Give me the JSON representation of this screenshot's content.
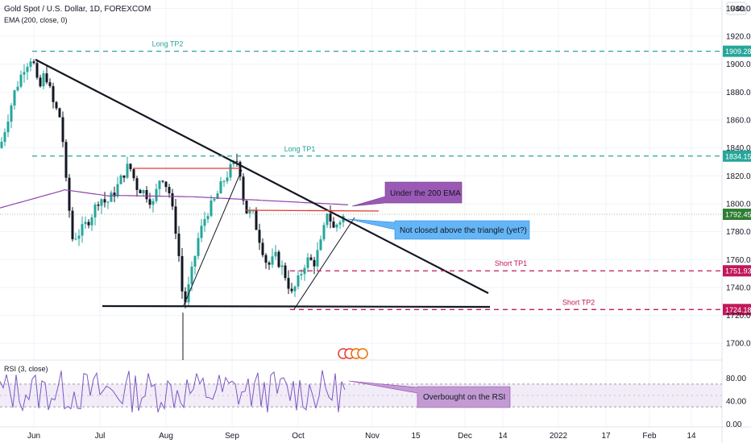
{
  "header": {
    "symbol": "Gold Spot / U.S. Dollar, 1D, FOREXCOM",
    "indicator": "EMA (200, close, 0)",
    "currency": "USD"
  },
  "rsi_header": "RSI (3, close)",
  "colors": {
    "up": "#26a69a",
    "down": "#131722",
    "ema": "#8e44ad",
    "tp_long": "#26a69a",
    "tp_short": "#c2185b",
    "trend": "#131722",
    "resistance": "#e53935",
    "callout_purple_fill": "#9b59b6",
    "callout_blue_fill": "#64b5f6",
    "rsi_line": "#7e57c2",
    "rsi_band": "#ede7f6",
    "current_price": "#2e7d32"
  },
  "chart_data": [
    {
      "type": "candlestick",
      "x_axis": {
        "tick_labels": [
          "Jun",
          "Jul",
          "Aug",
          "Sep",
          "Oct",
          "Nov",
          "15",
          "Dec",
          "14",
          "2022",
          "17",
          "Feb",
          "14"
        ]
      },
      "y_axis": {
        "ylim": [
          1688,
          1946
        ],
        "tick_labels": [
          1940,
          1920,
          1900,
          1880,
          1860,
          1840,
          1820,
          1800,
          1780,
          1760,
          1740,
          1720,
          1700
        ]
      },
      "series": [
        {
          "kind": "ema",
          "values_note": ""
        }
      ],
      "levels": [
        {
          "label": "Long TP2",
          "value": 1909.28,
          "badge": "1909.28",
          "color": "tp_long"
        },
        {
          "label": "Long TP1",
          "value": 1834.15,
          "badge": "1834.15",
          "color": "tp_long"
        },
        {
          "label": "Short TP1",
          "value": 1751.93,
          "badge": "1751.93",
          "color": "tp_short"
        },
        {
          "label": "Short TP2",
          "value": 1724.18,
          "badge": "1724.18",
          "color": "tp_short"
        }
      ],
      "current_price": {
        "value": 1792.45,
        "badge": "1792.45"
      },
      "annotations": [
        {
          "text": "Under the 200 EMA"
        },
        {
          "text": "Not closed above the triangle (yet?)"
        }
      ]
    },
    {
      "type": "line",
      "name": "RSI",
      "ylim": [
        -5,
        105
      ],
      "tick_labels": [
        "80.00",
        "40.00",
        "0.00"
      ],
      "bands": [
        70,
        30
      ],
      "annotation": "Overbought on the RSI"
    }
  ]
}
